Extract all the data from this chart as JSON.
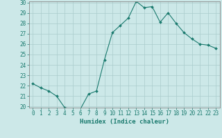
{
  "x": [
    0,
    1,
    2,
    3,
    4,
    5,
    6,
    7,
    8,
    9,
    10,
    11,
    12,
    13,
    14,
    15,
    16,
    17,
    18,
    19,
    20,
    21,
    22,
    23
  ],
  "y": [
    22.2,
    21.8,
    21.5,
    21.0,
    19.9,
    19.8,
    19.8,
    21.2,
    21.5,
    24.5,
    27.1,
    27.8,
    28.5,
    30.1,
    29.5,
    29.6,
    28.1,
    29.0,
    28.0,
    27.1,
    26.5,
    26.0,
    25.9,
    25.6
  ],
  "line_color": "#1a7a6e",
  "marker": "D",
  "marker_size": 2.0,
  "bg_color": "#cce8e8",
  "grid_color": "#aacccc",
  "xlabel": "Humidex (Indice chaleur)",
  "ylabel": "",
  "ylim": [
    20,
    30
  ],
  "xlim": [
    -0.5,
    23.5
  ],
  "yticks": [
    20,
    21,
    22,
    23,
    24,
    25,
    26,
    27,
    28,
    29,
    30
  ],
  "xticks": [
    0,
    1,
    2,
    3,
    4,
    5,
    6,
    7,
    8,
    9,
    10,
    11,
    12,
    13,
    14,
    15,
    16,
    17,
    18,
    19,
    20,
    21,
    22,
    23
  ],
  "tick_fontsize": 5.5,
  "xlabel_fontsize": 6.5,
  "axis_color": "#1a7a6e",
  "spine_color": "#888888"
}
